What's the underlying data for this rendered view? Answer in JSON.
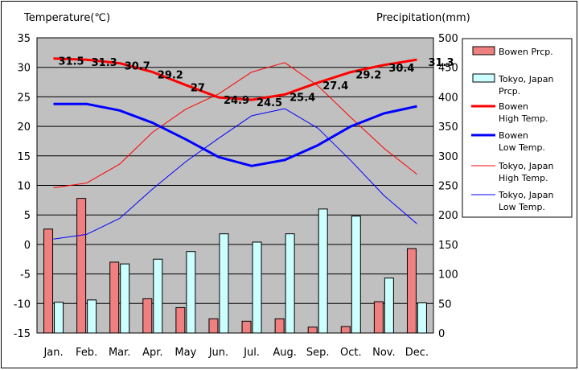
{
  "chart_data": {
    "type": "bar+line",
    "left_axis_title": "Temperature(℃)",
    "right_axis_title": "Precipitation(mm)",
    "categories": [
      "Jan.",
      "Feb.",
      "Mar.",
      "Apr.",
      "May",
      "Jun.",
      "Jul.",
      "Aug.",
      "Sep.",
      "Oct.",
      "Nov.",
      "Dec."
    ],
    "left_ticks": [
      35,
      30,
      25,
      20,
      15,
      10,
      5,
      0,
      -5,
      -10,
      -15
    ],
    "right_ticks": [
      500,
      450,
      400,
      350,
      300,
      250,
      200,
      150,
      100,
      50,
      0
    ],
    "temp_range": [
      -15,
      35
    ],
    "precip_range": [
      0,
      500
    ],
    "grid": true,
    "legend_position": "right",
    "bar_series": [
      {
        "name": "Bowen Prcp.",
        "color": "#f08080",
        "values": [
          176,
          228,
          120,
          58,
          43,
          24,
          20,
          24,
          10,
          11,
          53,
          143
        ]
      },
      {
        "name": "Tokyo, Japan Prcp.",
        "color": "#ccffff",
        "values": [
          52,
          56,
          117,
          125,
          138,
          168,
          154,
          168,
          210,
          198,
          93,
          51
        ]
      }
    ],
    "line_series": [
      {
        "name": "Bowen High Temp.",
        "color": "#ff0000",
        "width": 3,
        "values": [
          31.5,
          31.3,
          30.7,
          29.2,
          27,
          24.9,
          24.5,
          25.4,
          27.4,
          29.2,
          30.4,
          31.3
        ],
        "labels": [
          "31.5",
          "31.3",
          "30.7",
          "29.2",
          "27",
          "24.9",
          "24.5",
          "25.4",
          "27.4",
          "29.2",
          "30.4",
          "31.3"
        ]
      },
      {
        "name": "Bowen Low Temp.",
        "color": "#0000ff",
        "width": 3,
        "values": [
          23.8,
          23.8,
          22.7,
          20.6,
          17.8,
          14.8,
          13.3,
          14.3,
          16.8,
          20.0,
          22.2,
          23.4
        ]
      },
      {
        "name": "Tokyo, Japan High Temp.",
        "color": "#ff0000",
        "width": 1,
        "values": [
          9.6,
          10.4,
          13.6,
          19.0,
          22.9,
          25.5,
          29.2,
          30.8,
          26.9,
          21.5,
          16.3,
          11.9
        ]
      },
      {
        "name": "Tokyo, Japan Low Temp.",
        "color": "#0000ff",
        "width": 1,
        "values": [
          0.9,
          1.7,
          4.4,
          9.4,
          14.0,
          18.0,
          21.8,
          23.0,
          19.7,
          14.2,
          8.3,
          3.5
        ]
      }
    ]
  },
  "legend": [
    {
      "kind": "bar",
      "color": "#f08080",
      "lines": [
        "Bowen Prcp."
      ]
    },
    {
      "kind": "bar",
      "color": "#ccffff",
      "lines": [
        "Tokyo, Japan",
        "Prcp."
      ]
    },
    {
      "kind": "line",
      "color": "#ff0000",
      "width": 3,
      "lines": [
        "Bowen",
        " High Temp."
      ]
    },
    {
      "kind": "line",
      "color": "#0000ff",
      "width": 3,
      "lines": [
        "Bowen",
        " Low Temp."
      ]
    },
    {
      "kind": "line",
      "color": "#ff0000",
      "width": 1,
      "lines": [
        "Tokyo, Japan",
        "High Temp."
      ]
    },
    {
      "kind": "line",
      "color": "#0000ff",
      "width": 1,
      "lines": [
        "Tokyo, Japan",
        "Low Temp."
      ]
    }
  ]
}
